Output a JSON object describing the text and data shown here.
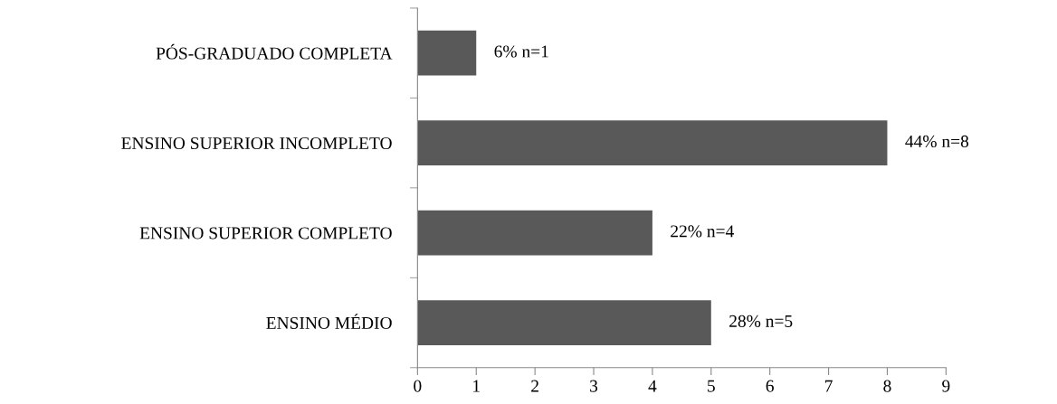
{
  "chart_data": {
    "type": "bar",
    "orientation": "horizontal",
    "categories": [
      "PÓS-GRADUADO COMPLETA",
      "ENSINO SUPERIOR INCOMPLETO",
      "ENSINO SUPERIOR COMPLETO",
      "ENSINO MÉDIO"
    ],
    "values": [
      1,
      8,
      4,
      5
    ],
    "color": "#595959",
    "value_labels": [
      "6% n=1",
      "44% n=8",
      "22% n=4",
      "28% n=5"
    ],
    "xlim": [
      0,
      9
    ],
    "xticks": [
      0,
      1,
      2,
      3,
      4,
      5,
      6,
      7,
      8,
      9
    ],
    "grid": false
  }
}
